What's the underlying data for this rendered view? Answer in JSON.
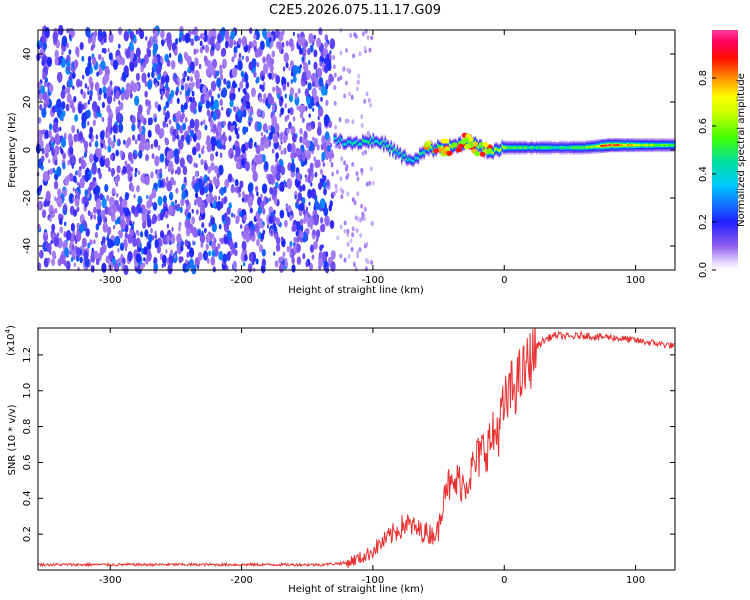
{
  "title": "C2E5.2026.075.11.17.G09",
  "chart_data": [
    {
      "type": "heatmap",
      "name": "spectrogram",
      "xlabel": "Height of straight line (km)",
      "ylabel": "Frequency (Hz)",
      "xlim": [
        -355,
        130
      ],
      "ylim": [
        -50,
        50
      ],
      "x_ticks": [
        -300,
        -200,
        -100,
        0,
        100
      ],
      "y_ticks": [
        -40,
        -20,
        0,
        20,
        40
      ],
      "x_tick_labels": [
        "-300",
        "-200",
        "-100",
        "0",
        "100"
      ],
      "y_tick_labels": [
        "-40",
        "-20",
        "0",
        "20",
        "40"
      ],
      "noise_region": {
        "x_range": [
          -355,
          -130
        ],
        "y_range": [
          -50,
          50
        ]
      },
      "signal_track": [
        {
          "x": -130,
          "freq": 4,
          "amp": 0.4
        },
        {
          "x": -115,
          "freq": 3,
          "amp": 0.45
        },
        {
          "x": -100,
          "freq": 4,
          "amp": 0.5
        },
        {
          "x": -90,
          "freq": 2,
          "amp": 0.45
        },
        {
          "x": -80,
          "freq": -2,
          "amp": 0.45
        },
        {
          "x": -70,
          "freq": -5,
          "amp": 0.4
        },
        {
          "x": -60,
          "freq": 0,
          "amp": 0.55
        },
        {
          "x": -50,
          "freq": 1,
          "amp": 0.65
        },
        {
          "x": -40,
          "freq": 1,
          "amp": 0.75
        },
        {
          "x": -30,
          "freq": 4,
          "amp": 0.7
        },
        {
          "x": -20,
          "freq": 1,
          "amp": 0.8
        },
        {
          "x": -10,
          "freq": -1,
          "amp": 0.75
        },
        {
          "x": 0,
          "freq": 1,
          "amp": 0.6
        },
        {
          "x": 20,
          "freq": 1,
          "amp": 0.5
        },
        {
          "x": 40,
          "freq": 1,
          "amp": 0.5
        },
        {
          "x": 60,
          "freq": 1,
          "amp": 0.55
        },
        {
          "x": 80,
          "freq": 2,
          "amp": 0.95
        },
        {
          "x": 100,
          "freq": 2,
          "amp": 0.7
        },
        {
          "x": 130,
          "freq": 2,
          "amp": 0.5
        }
      ],
      "colorbar": {
        "label": "Normalized spectral amplitude",
        "range": [
          0,
          1
        ],
        "ticks": [
          0.0,
          0.2,
          0.4,
          0.6,
          0.8
        ],
        "tick_labels": [
          "0.0",
          "0.2",
          "0.4",
          "0.6",
          "0.8"
        ]
      }
    },
    {
      "type": "line",
      "name": "snr",
      "xlabel": "Height of straight line (km)",
      "ylabel": "SNR (10 * v/v)",
      "yscale_label": "(x10",
      "yscale_exp": "4",
      "yscale_close": ")",
      "xlim": [
        -355,
        130
      ],
      "ylim": [
        0,
        1.35
      ],
      "x_ticks": [
        -300,
        -200,
        -100,
        0,
        100
      ],
      "y_ticks": [
        0.2,
        0.4,
        0.6,
        0.8,
        1.0,
        1.2
      ],
      "x_tick_labels": [
        "-300",
        "-200",
        "-100",
        "0",
        "100"
      ],
      "y_tick_labels": [
        "0.2",
        "0.4",
        "0.6",
        "0.8",
        "1.0",
        "1.2"
      ],
      "color": "#e83232",
      "series": [
        {
          "name": "SNR",
          "x": [
            -355,
            -300,
            -200,
            -140,
            -120,
            -105,
            -95,
            -85,
            -75,
            -65,
            -55,
            -50,
            -45,
            -40,
            -35,
            -30,
            -25,
            -20,
            -15,
            -10,
            -5,
            0,
            5,
            10,
            15,
            20,
            25,
            30,
            35,
            40,
            50,
            60,
            70,
            80,
            90,
            100,
            110,
            120,
            130
          ],
          "y": [
            0.03,
            0.03,
            0.03,
            0.03,
            0.04,
            0.08,
            0.14,
            0.2,
            0.26,
            0.22,
            0.2,
            0.22,
            0.5,
            0.45,
            0.5,
            0.48,
            0.55,
            0.62,
            0.68,
            0.72,
            0.78,
            0.9,
            1.0,
            1.05,
            1.1,
            1.18,
            1.25,
            1.28,
            1.3,
            1.31,
            1.3,
            1.31,
            1.3,
            1.3,
            1.29,
            1.28,
            1.27,
            1.26,
            1.25
          ]
        }
      ]
    }
  ]
}
